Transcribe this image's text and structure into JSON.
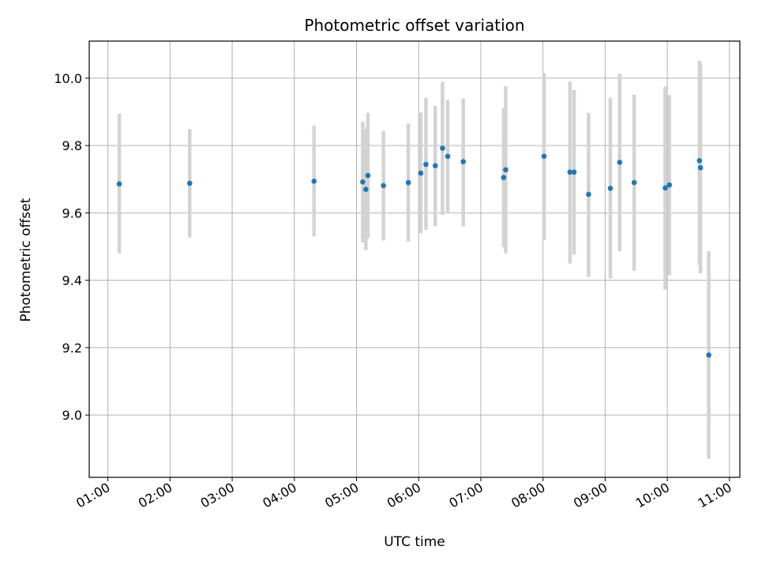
{
  "chart_data": {
    "type": "scatter",
    "title": "Photometric offset variation",
    "xlabel": "UTC time",
    "ylabel": "Photometric offset",
    "xlim": [
      "00:42",
      "11:10"
    ],
    "ylim": [
      8.815,
      10.11
    ],
    "grid": true,
    "x_ticks": [
      "01:00",
      "02:00",
      "03:00",
      "04:00",
      "05:00",
      "06:00",
      "07:00",
      "08:00",
      "09:00",
      "10:00",
      "11:00"
    ],
    "y_ticks": [
      9.0,
      9.2,
      9.4,
      9.6,
      9.8,
      10.0
    ],
    "y_tick_labels": [
      "9.0",
      "9.2",
      "9.4",
      "9.6",
      "9.8",
      "10.0"
    ],
    "colors": {
      "point": "#1f77b4",
      "error_bar": "#d3d3d3",
      "grid": "#b0b0b0"
    },
    "points": [
      {
        "t": "01:11",
        "y": 9.686,
        "lo": 9.48,
        "hi": 9.895
      },
      {
        "t": "02:19",
        "y": 9.688,
        "lo": 9.527,
        "hi": 9.849
      },
      {
        "t": "04:19",
        "y": 9.694,
        "lo": 9.53,
        "hi": 9.859
      },
      {
        "t": "05:06",
        "y": 9.692,
        "lo": 9.512,
        "hi": 9.871
      },
      {
        "t": "05:09",
        "y": 9.67,
        "lo": 9.49,
        "hi": 9.849
      },
      {
        "t": "05:11",
        "y": 9.711,
        "lo": 9.524,
        "hi": 9.897
      },
      {
        "t": "05:26",
        "y": 9.681,
        "lo": 9.518,
        "hi": 9.843
      },
      {
        "t": "05:50",
        "y": 9.69,
        "lo": 9.515,
        "hi": 9.865
      },
      {
        "t": "06:02",
        "y": 9.718,
        "lo": 9.54,
        "hi": 9.898
      },
      {
        "t": "06:07",
        "y": 9.744,
        "lo": 9.55,
        "hi": 9.942
      },
      {
        "t": "06:16",
        "y": 9.74,
        "lo": 9.56,
        "hi": 9.918
      },
      {
        "t": "06:23",
        "y": 9.792,
        "lo": 9.594,
        "hi": 9.989
      },
      {
        "t": "06:28",
        "y": 9.768,
        "lo": 9.6,
        "hi": 9.935
      },
      {
        "t": "06:43",
        "y": 9.752,
        "lo": 9.56,
        "hi": 9.94
      },
      {
        "t": "07:22",
        "y": 9.705,
        "lo": 9.498,
        "hi": 9.912
      },
      {
        "t": "07:24",
        "y": 9.728,
        "lo": 9.48,
        "hi": 9.976
      },
      {
        "t": "08:01",
        "y": 9.768,
        "lo": 9.52,
        "hi": 10.015
      },
      {
        "t": "08:26",
        "y": 9.721,
        "lo": 9.45,
        "hi": 9.99
      },
      {
        "t": "08:30",
        "y": 9.721,
        "lo": 9.477,
        "hi": 9.965
      },
      {
        "t": "08:44",
        "y": 9.655,
        "lo": 9.41,
        "hi": 9.897
      },
      {
        "t": "09:05",
        "y": 9.673,
        "lo": 9.405,
        "hi": 9.941
      },
      {
        "t": "09:14",
        "y": 9.75,
        "lo": 9.486,
        "hi": 10.013
      },
      {
        "t": "09:28",
        "y": 9.69,
        "lo": 9.428,
        "hi": 9.951
      },
      {
        "t": "09:58",
        "y": 9.674,
        "lo": 9.372,
        "hi": 9.975
      },
      {
        "t": "10:02",
        "y": 9.683,
        "lo": 9.415,
        "hi": 9.95
      },
      {
        "t": "10:31",
        "y": 9.755,
        "lo": 9.445,
        "hi": 10.052
      },
      {
        "t": "10:32",
        "y": 9.734,
        "lo": 9.42,
        "hi": 10.043
      },
      {
        "t": "10:40",
        "y": 9.178,
        "lo": 8.87,
        "hi": 9.486
      }
    ]
  }
}
